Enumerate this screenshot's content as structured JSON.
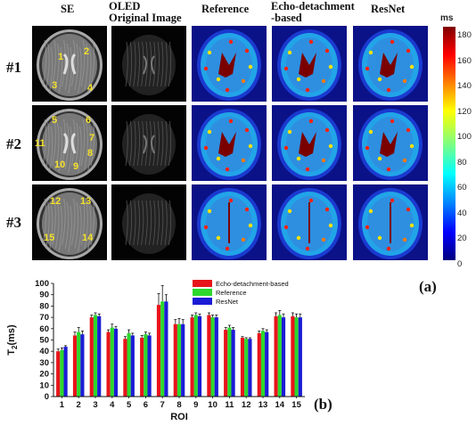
{
  "headers": {
    "se": "SE",
    "oled_line1": "OLED",
    "oled_line2": "Original Image",
    "reference": "Reference",
    "echo_line1": "Echo-detachment",
    "echo_line2": "-based",
    "resnet": "ResNet"
  },
  "rows": [
    "#1",
    "#2",
    "#3"
  ],
  "roi_labels": {
    "row1": [
      "1",
      "2",
      "3",
      "4"
    ],
    "row2": [
      "5",
      "6",
      "7",
      "8",
      "9",
      "10",
      "11"
    ],
    "row3": [
      "12",
      "13",
      "14",
      "15"
    ]
  },
  "colorbar": {
    "unit": "ms",
    "ticks": [
      "180",
      "160",
      "140",
      "120",
      "100",
      "80",
      "60",
      "40",
      "20",
      "0"
    ]
  },
  "panel_labels": {
    "a": "(a)",
    "b": "(b)"
  },
  "chart_data": {
    "type": "bar",
    "ylabel": "T2(ms)",
    "xlabel": "ROI",
    "ylim": [
      0,
      100
    ],
    "yticks": [
      0,
      10,
      20,
      30,
      40,
      50,
      60,
      70,
      80,
      90,
      100
    ],
    "categories": [
      "1",
      "2",
      "3",
      "4",
      "5",
      "6",
      "7",
      "8",
      "9",
      "10",
      "11",
      "12",
      "13",
      "14",
      "15"
    ],
    "series": [
      {
        "name": "Echo-detachment-based",
        "color": "#e8141b",
        "values": [
          40,
          54,
          70,
          57,
          51,
          52,
          81,
          64,
          70,
          72,
          59,
          52,
          56,
          71,
          71
        ],
        "errors": [
          2,
          3,
          2,
          2,
          2,
          2,
          10,
          4,
          2,
          2,
          2,
          1,
          2,
          3,
          3
        ]
      },
      {
        "name": "Reference",
        "color": "#2dd82d",
        "values": [
          41,
          57,
          72,
          61,
          56,
          55,
          84,
          64,
          72,
          70,
          61,
          51,
          58,
          72,
          70
        ],
        "errors": [
          2,
          4,
          2,
          3,
          3,
          2,
          14,
          5,
          2,
          2,
          2,
          1,
          2,
          4,
          3
        ]
      },
      {
        "name": "ResNet",
        "color": "#1b1bd6",
        "values": [
          44,
          55,
          71,
          60,
          54,
          54,
          84,
          64,
          71,
          70,
          59,
          51,
          57,
          70,
          70
        ],
        "errors": [
          1,
          3,
          2,
          2,
          2,
          2,
          6,
          4,
          2,
          2,
          2,
          1,
          2,
          3,
          3
        ]
      }
    ]
  }
}
